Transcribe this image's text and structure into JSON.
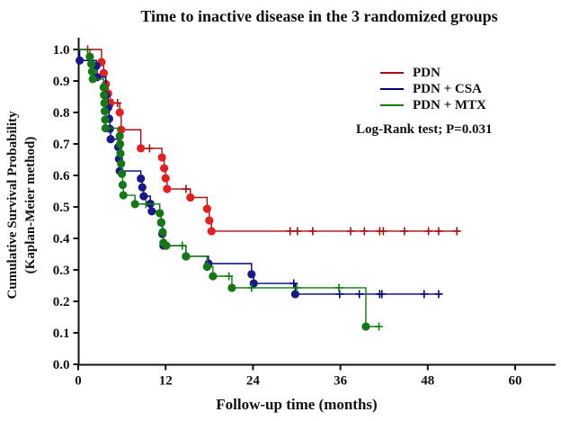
{
  "chart_data": {
    "type": "line",
    "subtype": "kaplan-meier-step",
    "title": "Time to inactive disease in the 3 randomized groups",
    "xlabel": "Follow-up time (months)",
    "ylabel_line1": "Cumulative Survival Probability",
    "ylabel_line2": "(Kaplan-Meier method)",
    "annotation": "Log-Rank test; P=0.031",
    "xlim": [
      0,
      66
    ],
    "ylim": [
      0.0,
      1.0
    ],
    "xticks": [
      0,
      12,
      24,
      36,
      48,
      60
    ],
    "yticks": [
      "0.0",
      "0.1",
      "0.2",
      "0.3",
      "0.4",
      "0.5",
      "0.6",
      "0.7",
      "0.8",
      "0.9",
      "1.0"
    ],
    "grid": false,
    "legend_position": "upper-right-inside",
    "series": [
      {
        "name": "PDN",
        "line_color": "#a50f0f",
        "marker_color": "#e32020",
        "start": [
          0,
          1.0
        ],
        "steps": [
          [
            3.2,
            0.96
          ],
          [
            3.5,
            0.925
          ],
          [
            3.8,
            0.89
          ],
          [
            4.1,
            0.86
          ],
          [
            4.4,
            0.83
          ],
          [
            5.7,
            0.8
          ],
          [
            5.9,
            0.745
          ],
          [
            8.6,
            0.686
          ],
          [
            11.5,
            0.657
          ],
          [
            11.8,
            0.623
          ],
          [
            12.0,
            0.591
          ],
          [
            12.2,
            0.557
          ],
          [
            15.4,
            0.53
          ],
          [
            17.7,
            0.494
          ],
          [
            18.0,
            0.457
          ],
          [
            18.3,
            0.423
          ]
        ],
        "censors": [
          [
            1.3,
            1.0
          ],
          [
            4.7,
            0.83
          ],
          [
            5.4,
            0.83
          ],
          [
            9.8,
            0.686
          ],
          [
            14.8,
            0.557
          ],
          [
            29.1,
            0.423
          ],
          [
            30.1,
            0.423
          ],
          [
            32.2,
            0.423
          ],
          [
            37.4,
            0.423
          ],
          [
            39.3,
            0.423
          ],
          [
            41.4,
            0.423
          ],
          [
            41.9,
            0.423
          ],
          [
            44.8,
            0.423
          ],
          [
            48.1,
            0.423
          ],
          [
            49.5,
            0.423
          ],
          [
            52.0,
            0.423
          ]
        ],
        "end": 52.5
      },
      {
        "name": "PDN + CSA",
        "line_color": "#00007d",
        "marker_color": "#18188c",
        "start": [
          0,
          1.0
        ],
        "steps": [
          [
            0.2,
            0.965
          ],
          [
            2.5,
            0.948
          ],
          [
            2.6,
            0.912
          ],
          [
            3.8,
            0.855
          ],
          [
            4.1,
            0.815
          ],
          [
            4.25,
            0.78
          ],
          [
            4.35,
            0.748
          ],
          [
            4.45,
            0.715
          ],
          [
            5.5,
            0.69
          ],
          [
            5.6,
            0.652
          ],
          [
            5.7,
            0.614
          ],
          [
            8.6,
            0.59
          ],
          [
            8.8,
            0.562
          ],
          [
            9.0,
            0.534
          ],
          [
            9.9,
            0.51
          ],
          [
            10.1,
            0.486
          ],
          [
            11.4,
            0.45
          ],
          [
            11.55,
            0.414
          ],
          [
            11.7,
            0.377
          ],
          [
            14.8,
            0.343
          ],
          [
            17.9,
            0.32
          ],
          [
            23.8,
            0.286
          ],
          [
            24.1,
            0.257
          ],
          [
            29.8,
            0.223
          ]
        ],
        "censors": [
          [
            29.6,
            0.257
          ],
          [
            35.9,
            0.223
          ],
          [
            38.6,
            0.223
          ],
          [
            41.4,
            0.223
          ],
          [
            41.7,
            0.223
          ],
          [
            47.5,
            0.223
          ],
          [
            49.5,
            0.223
          ]
        ],
        "end": 49.8
      },
      {
        "name": "PDN + MTX",
        "line_color": "#0b7d0b",
        "marker_color": "#157815",
        "start": [
          0,
          1.0
        ],
        "steps": [
          [
            1.6,
            0.977
          ],
          [
            1.8,
            0.954
          ],
          [
            1.9,
            0.93
          ],
          [
            2.0,
            0.906
          ],
          [
            3.5,
            0.88
          ],
          [
            3.55,
            0.855
          ],
          [
            3.6,
            0.83
          ],
          [
            3.65,
            0.804
          ],
          [
            3.7,
            0.777
          ],
          [
            3.75,
            0.75
          ],
          [
            5.7,
            0.725
          ],
          [
            5.75,
            0.7
          ],
          [
            5.8,
            0.67
          ],
          [
            5.9,
            0.637
          ],
          [
            6.0,
            0.605
          ],
          [
            6.1,
            0.57
          ],
          [
            6.2,
            0.537
          ],
          [
            7.8,
            0.509
          ],
          [
            11.2,
            0.48
          ],
          [
            11.4,
            0.451
          ],
          [
            11.6,
            0.42
          ],
          [
            11.7,
            0.386
          ],
          [
            12.1,
            0.377
          ],
          [
            14.8,
            0.343
          ],
          [
            17.7,
            0.31
          ],
          [
            18.5,
            0.28
          ],
          [
            21.1,
            0.243
          ],
          [
            39.5,
            0.12
          ]
        ],
        "censors": [
          [
            9.3,
            0.509
          ],
          [
            14.3,
            0.377
          ],
          [
            20.7,
            0.28
          ],
          [
            23.8,
            0.243
          ],
          [
            30.0,
            0.243
          ],
          [
            35.8,
            0.243
          ],
          [
            41.3,
            0.12
          ]
        ],
        "end": 41.5
      }
    ]
  },
  "legend": {
    "items": [
      {
        "label": "PDN"
      },
      {
        "label": "PDN + CSA"
      },
      {
        "label": "PDN + MTX"
      }
    ]
  }
}
